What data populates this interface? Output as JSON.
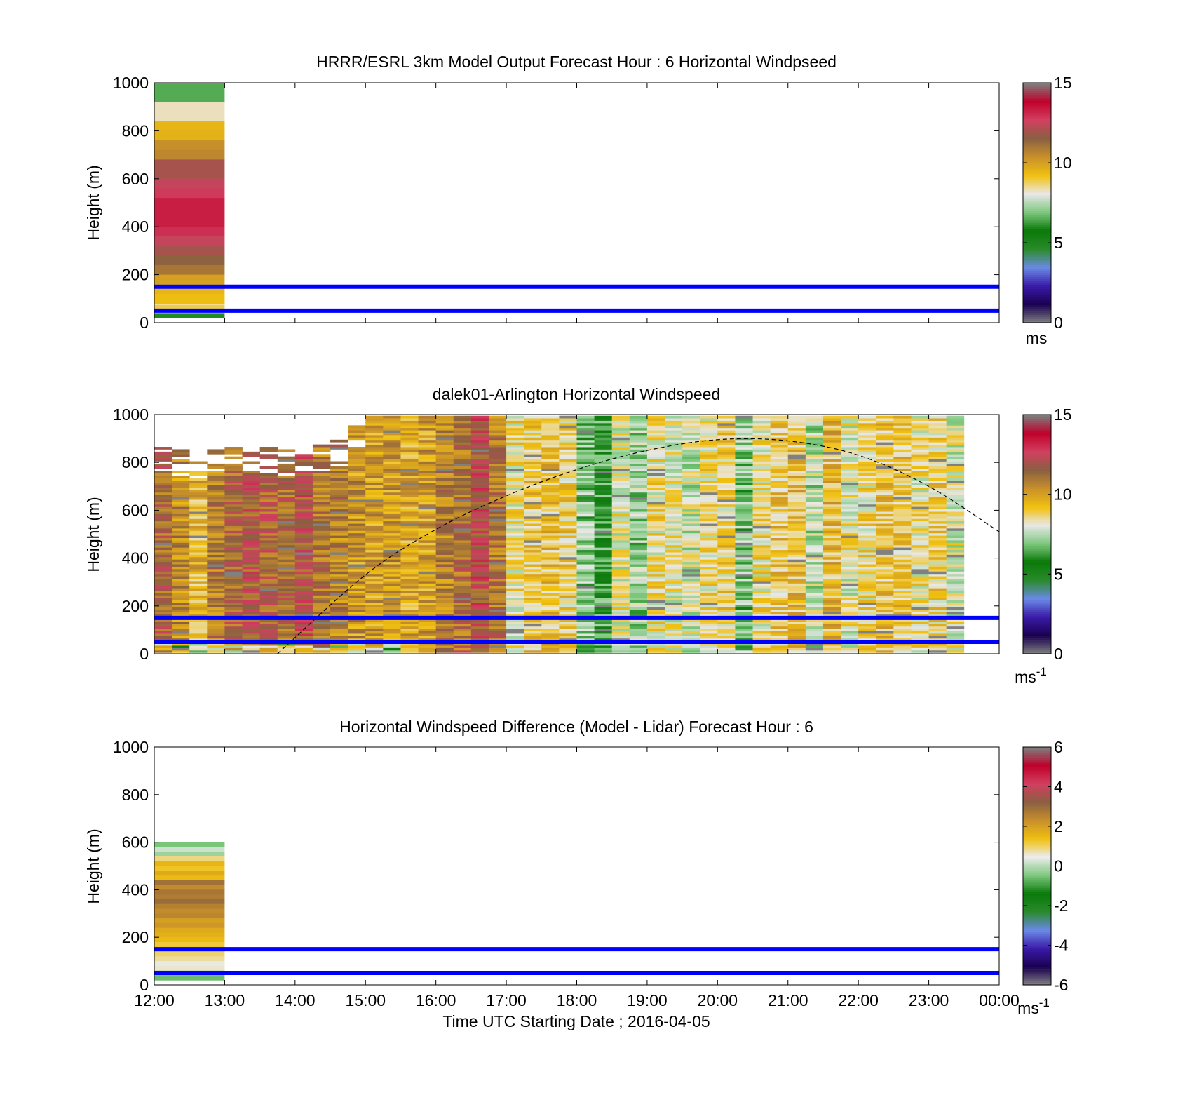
{
  "figure": {
    "xlabel": "Time UTC  Starting Date ; 2016-04-05",
    "x_ticks": [
      "12:00",
      "13:00",
      "14:00",
      "15:00",
      "16:00",
      "17:00",
      "18:00",
      "19:00",
      "20:00",
      "21:00",
      "22:00",
      "23:00",
      "00:00"
    ]
  },
  "colors": {
    "blue_lines": "#0000ff",
    "windspeed_colormap": [
      "#808080",
      "#1a0050",
      "#3a1aa8",
      "#6a8ae6",
      "#2a8a2a",
      "#0a7a0a",
      "#7ec87e",
      "#e8e8e8",
      "#f0c010",
      "#c8902a",
      "#8a6040",
      "#d04060",
      "#c0002a",
      "#808080"
    ],
    "difference_colormap": [
      "#808080",
      "#1a0050",
      "#3a1aa8",
      "#6a8ae6",
      "#2a8a2a",
      "#0a7a0a",
      "#7ec87e",
      "#ececec",
      "#f0c010",
      "#c8902a",
      "#8a6040",
      "#d04060",
      "#c0002a",
      "#808080"
    ]
  },
  "chart_data": [
    {
      "type": "heatmap",
      "title": "HRRR/ESRL 3km Model Output   Forecast Hour : 6 Horizontal Windpseed",
      "ylabel": "Height (m)",
      "xlim": [
        "12:00",
        "00:00"
      ],
      "ylim": [
        0,
        1000
      ],
      "y_ticks": [
        "0",
        "200",
        "400",
        "600",
        "800",
        "1000"
      ],
      "reference_lines_m": [
        150,
        50
      ],
      "colorbar": {
        "range": [
          0,
          15
        ],
        "ticks": [
          "0",
          "5",
          "10",
          "15"
        ],
        "unit": "ms"
      },
      "data": {
        "time_span": [
          "12:00",
          "13:00"
        ],
        "height_bins_m": [
          980,
          940,
          900,
          860,
          820,
          780,
          740,
          700,
          660,
          620,
          580,
          540,
          500,
          460,
          420,
          380,
          340,
          300,
          260,
          220,
          180,
          140,
          100,
          60,
          30
        ],
        "windspeed": [
          6.5,
          6.5,
          8.3,
          8.3,
          9.5,
          9.6,
          10.4,
          10.6,
          12.0,
          12.0,
          12.5,
          12.8,
          13.3,
          13.3,
          13.3,
          13.0,
          12.5,
          12.0,
          11.5,
          11.0,
          10.0,
          9.5,
          9.3,
          8.9,
          6.0
        ]
      }
    },
    {
      "type": "heatmap",
      "title": "dalek01-Arlington  Horizontal Windspeed",
      "ylabel": "Height (m)",
      "xlim": [
        "12:00",
        "00:00"
      ],
      "ylim": [
        0,
        1000
      ],
      "y_ticks": [
        "0",
        "200",
        "400",
        "600",
        "800",
        "1000"
      ],
      "reference_lines_m": [
        150,
        50
      ],
      "colorbar": {
        "range": [
          0,
          15
        ],
        "ticks": [
          "0",
          "5",
          "10",
          "15"
        ],
        "unit": "ms",
        "unit_superscript": "-1"
      },
      "data": {
        "time_step_minutes": 15,
        "profile_mean_windspeed": [
          11.5,
          10.5,
          9.5,
          10.8,
          11.5,
          11.8,
          11.6,
          11.3,
          11.9,
          11.0,
          10.8,
          10.2,
          10.0,
          10.2,
          9.8,
          10.0,
          10.8,
          11.2,
          12.0,
          11.0,
          8.5,
          9.0,
          9.2,
          8.8,
          7.0,
          6.2,
          8.2,
          7.2,
          8.5,
          8.2,
          7.8,
          8.6,
          8.8,
          7.0,
          8.5,
          9.0,
          9.2,
          7.6,
          9.4,
          8.2,
          8.5,
          9.1,
          9.0,
          8.4,
          8.8,
          8.1
        ],
        "profile_top_height_m": [
          870,
          860,
          840,
          860,
          870,
          870,
          870,
          860,
          870,
          880,
          900,
          960,
          1000,
          1000,
          1000,
          1000,
          1000,
          1000,
          1000,
          1000,
          1000,
          1000,
          1000,
          1000,
          1000,
          1000,
          1000,
          1000,
          1000,
          1000,
          1000,
          1000,
          1000,
          1000,
          1000,
          1000,
          1000,
          1000,
          1000,
          1000,
          1000,
          1000,
          1000,
          1000,
          1000,
          1000
        ],
        "dashed_curve": {
          "times": [
            "13:45",
            "15:00",
            "16:00",
            "17:00",
            "18:00",
            "19:00",
            "20:00",
            "21:00",
            "22:00",
            "23:00",
            "00:00"
          ],
          "height_m": [
            0,
            330,
            520,
            660,
            770,
            850,
            895,
            890,
            830,
            700,
            510
          ]
        }
      }
    },
    {
      "type": "heatmap",
      "title": "Horizontal Windspeed Difference (Model - Lidar) Forecast Hour : 6",
      "ylabel": "Height (m)",
      "xlim": [
        "12:00",
        "00:00"
      ],
      "ylim": [
        0,
        1000
      ],
      "y_ticks": [
        "0",
        "200",
        "400",
        "600",
        "800",
        "1000"
      ],
      "reference_lines_m": [
        150,
        50
      ],
      "colorbar": {
        "range": [
          -6,
          6
        ],
        "ticks": [
          "-6",
          "-4",
          "-2",
          "0",
          "2",
          "4",
          "6"
        ],
        "unit": "ms",
        "unit_superscript": "-1"
      },
      "data": {
        "time_span": [
          "12:00",
          "13:00"
        ],
        "height_bins_m": [
          590,
          570,
          550,
          530,
          510,
          490,
          470,
          450,
          430,
          410,
          390,
          370,
          350,
          330,
          310,
          290,
          270,
          250,
          230,
          210,
          190,
          170,
          150,
          130,
          110,
          90,
          70,
          50,
          30
        ],
        "difference": [
          -0.5,
          0.2,
          -0.2,
          0.9,
          1.6,
          1.3,
          1.8,
          1.5,
          2.9,
          2.4,
          2.8,
          2.7,
          3.0,
          2.6,
          2.4,
          2.5,
          2.0,
          2.2,
          1.8,
          1.7,
          1.5,
          1.2,
          1.4,
          1.0,
          0.8,
          0.4,
          0.6,
          -0.3,
          -0.6
        ]
      }
    }
  ]
}
